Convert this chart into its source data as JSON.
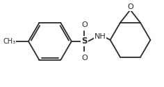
{
  "bg_color": "#ffffff",
  "line_color": "#2a2a2a",
  "line_width": 1.3,
  "figsize": [
    2.36,
    1.26
  ],
  "dpi": 100,
  "xlim": [
    0.0,
    2.36
  ],
  "ylim": [
    0.0,
    1.26
  ]
}
